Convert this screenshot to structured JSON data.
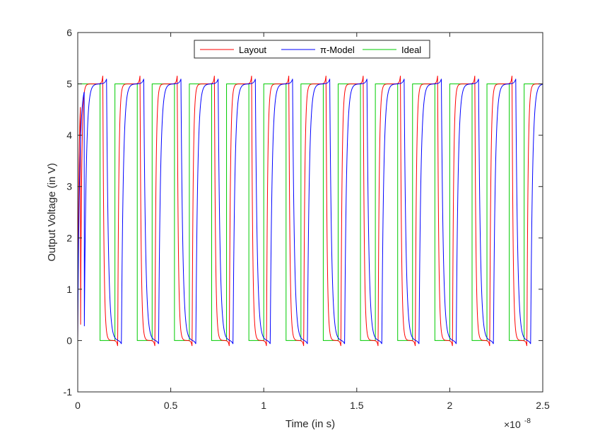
{
  "chart_data": {
    "type": "line",
    "xlabel": "Time (in s)",
    "ylabel": "Output Voltage (in V)",
    "xlim": [
      0,
      2.5e-08
    ],
    "ylim": [
      -1,
      6
    ],
    "x_tick_labels": [
      "0",
      "0.5",
      "1",
      "1.5",
      "2",
      "2.5"
    ],
    "x_tick_values": [
      0,
      5e-09,
      1e-08,
      1.5e-08,
      2e-08,
      2.5e-08
    ],
    "x_exponent": {
      "base": "×10",
      "power": "-8"
    },
    "y_tick_labels": [
      "-1",
      "0",
      "1",
      "2",
      "3",
      "4",
      "5",
      "6"
    ],
    "y_tick_values": [
      -1,
      0,
      1,
      2,
      3,
      4,
      5,
      6
    ],
    "grid": false,
    "legend_position": "top-center",
    "legend_orientation": "horizontal",
    "signal": {
      "high": 5,
      "low": 0,
      "period": 2e-09,
      "high_duration": 1.2e-09,
      "cycles": 12,
      "description_values_ideal_rise_times": [
        0,
        2e-09,
        4e-09,
        6e-09,
        8e-09,
        1e-08,
        1.2e-08,
        1.4e-08,
        1.6e-08,
        1.8e-08,
        2e-08,
        2.2e-08,
        2.4e-08
      ],
      "overshoot_peak": 5.17,
      "undershoot_min": -0.12
    },
    "series": [
      {
        "name": "Layout",
        "color": "#ff0000",
        "delay": 1.5e-10,
        "rise_time_constant": 6e-11,
        "overshoot": 0.17
      },
      {
        "name": "π-Model",
        "color": "#0000ff",
        "delay": 3.5e-10,
        "rise_time_constant": 1e-10,
        "overshoot": 0.1
      },
      {
        "name": "Ideal",
        "color": "#00cc00",
        "delay": 0,
        "rise_time_constant": 0,
        "overshoot": 0
      }
    ]
  }
}
